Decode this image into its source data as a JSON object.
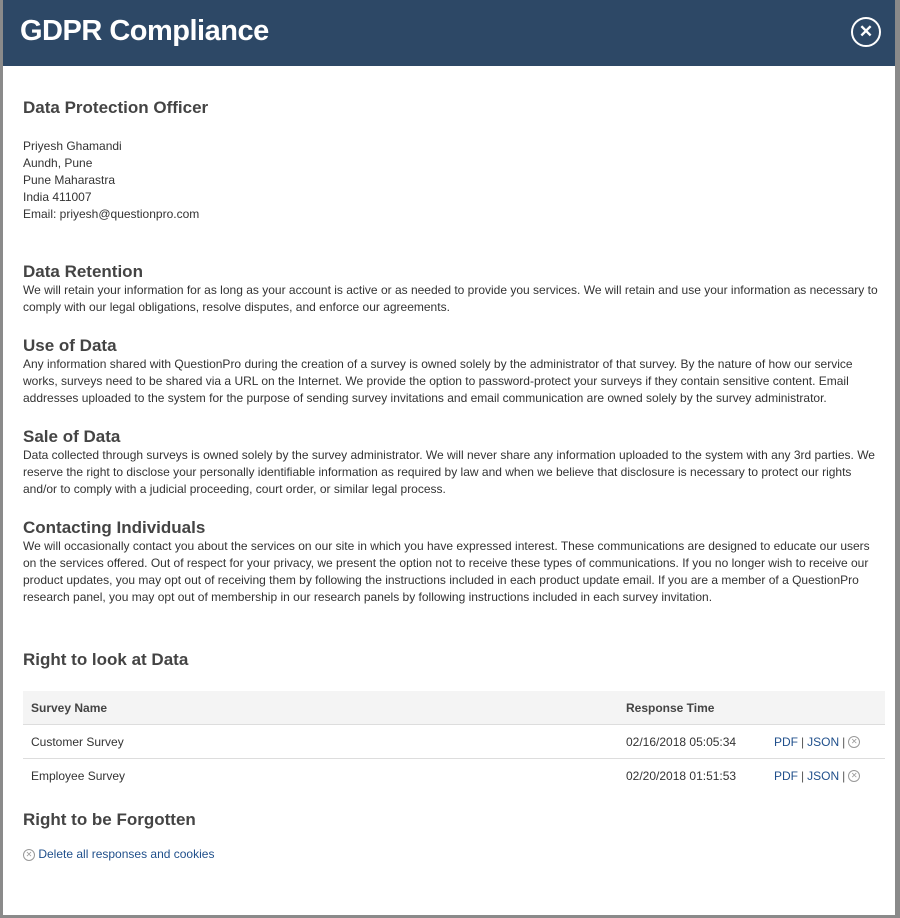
{
  "title": "GDPR Compliance",
  "close_icon": "close-circle-icon",
  "dpo": {
    "heading": "Data Protection Officer",
    "lines": [
      "Priyesh Ghamandi",
      "Aundh, Pune",
      "Pune Maharastra",
      "India 411007",
      "Email: priyesh@questionpro.com"
    ]
  },
  "sections": [
    {
      "heading": "Data Retention",
      "text": "We will retain your information for as long as your account is active or as needed to provide you services. We will retain and use your information as necessary to comply with our legal obligations, resolve disputes, and enforce our agreements."
    },
    {
      "heading": "Use of Data",
      "text": "Any information shared with QuestionPro during the creation of a survey is owned solely by the administrator of that survey. By the nature of how our service works, surveys need to be shared via a URL on the Internet. We provide the option to password-protect your surveys if they contain sensitive content. Email addresses uploaded to the system for the purpose of sending survey invitations and email communication are owned solely by the survey administrator."
    },
    {
      "heading": "Sale of Data",
      "text": "Data collected through surveys is owned solely by the survey administrator. We will never share any information uploaded to the system with any 3rd parties. We reserve the right to disclose your personally identifiable information as required by law and when we believe that disclosure is necessary to protect our rights and/or to comply with a judicial proceeding, court order, or similar legal process."
    },
    {
      "heading": "Contacting Individuals",
      "text": "We will occasionally contact you about the services on our site in which you have expressed interest. These communications are designed to educate our users on the services offered. Out of respect for your privacy, we present the option not to receive these types of communications. If you no longer wish to receive our product updates, you may opt out of receiving them by following the instructions included in each product update email. If you are a member of a QuestionPro research panel, you may opt out of membership in our research panels by following instructions included in each survey invitation."
    }
  ],
  "look": {
    "heading": "Right to look at Data",
    "columns": [
      "Survey Name",
      "Response Time"
    ],
    "rows": [
      {
        "name": "Customer Survey",
        "time": "02/16/2018 05:05:34",
        "pdf": "PDF",
        "json": "JSON"
      },
      {
        "name": "Employee Survey",
        "time": "02/20/2018 01:51:53",
        "pdf": "PDF",
        "json": "JSON"
      }
    ]
  },
  "forgotten": {
    "heading": "Right to be Forgotten",
    "link": "Delete all responses and cookies"
  }
}
